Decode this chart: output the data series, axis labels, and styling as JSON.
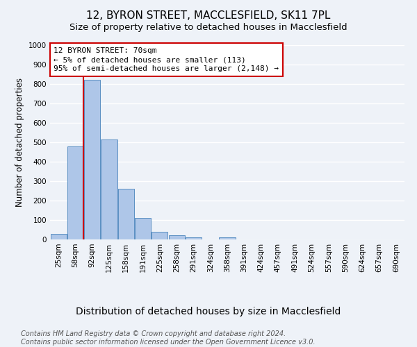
{
  "title": "12, BYRON STREET, MACCLESFIELD, SK11 7PL",
  "subtitle": "Size of property relative to detached houses in Macclesfield",
  "xlabel": "Distribution of detached houses by size in Macclesfield",
  "ylabel": "Number of detached properties",
  "bar_labels": [
    "25sqm",
    "58sqm",
    "92sqm",
    "125sqm",
    "158sqm",
    "191sqm",
    "225sqm",
    "258sqm",
    "291sqm",
    "324sqm",
    "358sqm",
    "391sqm",
    "424sqm",
    "457sqm",
    "491sqm",
    "524sqm",
    "557sqm",
    "590sqm",
    "624sqm",
    "657sqm",
    "690sqm"
  ],
  "bar_values": [
    30,
    480,
    820,
    515,
    260,
    110,
    40,
    20,
    10,
    0,
    10,
    0,
    0,
    0,
    0,
    0,
    0,
    0,
    0,
    0,
    0
  ],
  "bar_color": "#aec6e8",
  "bar_edge_color": "#5a8fc2",
  "vline_x_idx": 1,
  "vline_color": "#cc0000",
  "ylim": [
    0,
    1000
  ],
  "yticks": [
    0,
    100,
    200,
    300,
    400,
    500,
    600,
    700,
    800,
    900,
    1000
  ],
  "annotation_title": "12 BYRON STREET: 70sqm",
  "annotation_line1": "← 5% of detached houses are smaller (113)",
  "annotation_line2": "95% of semi-detached houses are larger (2,148) →",
  "annotation_box_color": "#cc0000",
  "footer_line1": "Contains HM Land Registry data © Crown copyright and database right 2024.",
  "footer_line2": "Contains public sector information licensed under the Open Government Licence v3.0.",
  "bg_color": "#eef2f8",
  "grid_color": "#ffffff",
  "title_fontsize": 11,
  "subtitle_fontsize": 9.5,
  "xlabel_fontsize": 10,
  "ylabel_fontsize": 8.5,
  "tick_fontsize": 7.5,
  "footer_fontsize": 7,
  "ann_fontsize": 8
}
